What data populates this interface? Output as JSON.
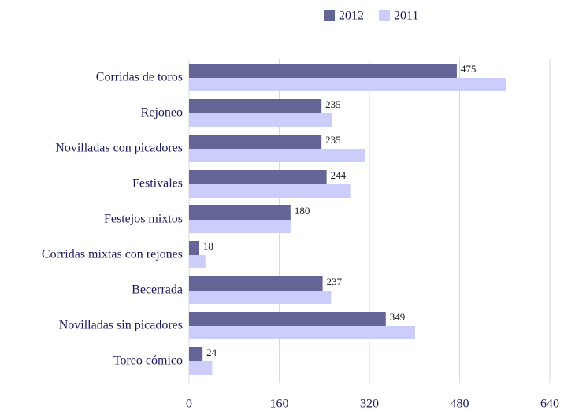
{
  "chart_data": {
    "type": "hbar",
    "categories": [
      "Corridas de toros",
      "Rejoneo",
      "Novilladas con picadores",
      "Festivales",
      "Festejos mixtos",
      "Corridas mixtas con rejones",
      "Becerrada",
      "Novilladas sin picadores",
      "Toreo cómico"
    ],
    "series": [
      {
        "name": "2012",
        "color": "#646496",
        "values": [
          475,
          235,
          235,
          244,
          180,
          18,
          237,
          349,
          24
        ],
        "data_labels": true
      },
      {
        "name": "2011",
        "color": "#cdcdfb",
        "values": [
          563,
          253,
          312,
          286,
          180,
          29,
          252,
          401,
          41
        ]
      }
    ],
    "xlim": [
      0,
      640
    ],
    "xticks": [
      0,
      160,
      320,
      480,
      640
    ],
    "grid": true,
    "legend": "top"
  }
}
